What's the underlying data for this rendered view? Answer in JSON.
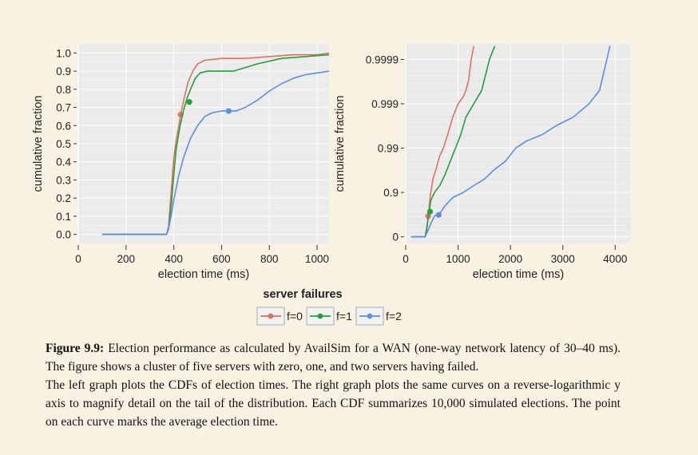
{
  "chart_data": [
    {
      "type": "line",
      "xlabel": "election time (ms)",
      "ylabel": "cumulative fraction",
      "xlim": [
        0,
        1050
      ],
      "ylim": [
        0,
        1
      ],
      "x_ticks": [
        "0",
        "200",
        "400",
        "600",
        "800",
        "1000"
      ],
      "y_ticks": [
        "0.0",
        "0.1",
        "0.2",
        "0.3",
        "0.4",
        "0.5",
        "0.6",
        "0.7",
        "0.8",
        "0.9",
        "1.0"
      ],
      "grid": true,
      "series": [
        {
          "name": "f=0",
          "color": "#e07060",
          "x": [
            100,
            370,
            378,
            390,
            400,
            410,
            420,
            430,
            445,
            460,
            480,
            500,
            530,
            600,
            700,
            800,
            900,
            1000,
            1050
          ],
          "y": [
            0,
            0,
            0.04,
            0.25,
            0.42,
            0.52,
            0.59,
            0.67,
            0.76,
            0.84,
            0.9,
            0.94,
            0.96,
            0.97,
            0.97,
            0.98,
            0.99,
            0.99,
            1.0
          ],
          "mean": {
            "x": 429,
            "y": 0.66
          }
        },
        {
          "name": "f=1",
          "color": "#22a03a",
          "x": [
            100,
            370,
            378,
            390,
            400,
            410,
            425,
            440,
            455,
            470,
            490,
            510,
            540,
            580,
            650,
            750,
            850,
            950,
            1050
          ],
          "y": [
            0,
            0,
            0.03,
            0.17,
            0.33,
            0.47,
            0.59,
            0.68,
            0.75,
            0.8,
            0.86,
            0.89,
            0.9,
            0.9,
            0.9,
            0.94,
            0.97,
            0.98,
            0.99
          ],
          "mean": {
            "x": 465,
            "y": 0.73
          }
        },
        {
          "name": "f=2",
          "color": "#5b8fe0",
          "x": [
            100,
            370,
            378,
            390,
            400,
            420,
            440,
            470,
            500,
            530,
            560,
            600,
            630,
            660,
            700,
            750,
            800,
            850,
            900,
            950,
            1000,
            1050
          ],
          "y": [
            0,
            0,
            0.03,
            0.11,
            0.19,
            0.32,
            0.42,
            0.53,
            0.6,
            0.65,
            0.67,
            0.68,
            0.68,
            0.68,
            0.7,
            0.74,
            0.79,
            0.83,
            0.86,
            0.88,
            0.89,
            0.9
          ],
          "mean": {
            "x": 630,
            "y": 0.68
          }
        }
      ]
    },
    {
      "type": "line",
      "xlabel": "election time (ms)",
      "ylabel": "cumulative fraction",
      "y_scale": "reverse-log",
      "xlim": [
        0,
        4300
      ],
      "ylim": [
        0,
        0.9999
      ],
      "x_ticks": [
        "0",
        "1000",
        "2000",
        "3000",
        "4000"
      ],
      "y_ticks": [
        "0",
        "0.9",
        "0.99",
        "0.999",
        "0.9999"
      ],
      "grid": true,
      "series": [
        {
          "name": "f=0",
          "color": "#e07060",
          "x": [
            100,
            370,
            400,
            430,
            470,
            520,
            580,
            650,
            720,
            800,
            900,
            1000,
            1100,
            1150,
            1200,
            1250,
            1300
          ],
          "y": [
            0,
            0,
            0.35,
            0.66,
            0.88,
            0.95,
            0.97,
            0.985,
            0.99,
            0.995,
            0.998,
            0.999,
            0.9993,
            0.9995,
            0.9997,
            0.9999,
            0.99995
          ],
          "mean": {
            "x": 429,
            "y": 0.66
          }
        },
        {
          "name": "f=1",
          "color": "#22a03a",
          "x": [
            100,
            370,
            400,
            440,
            480,
            550,
            650,
            750,
            850,
            950,
            1050,
            1150,
            1300,
            1450,
            1600,
            1700
          ],
          "y": [
            0,
            0,
            0.3,
            0.7,
            0.85,
            0.9,
            0.93,
            0.96,
            0.98,
            0.99,
            0.995,
            0.998,
            0.999,
            0.9995,
            0.9999,
            0.99995
          ],
          "mean": {
            "x": 465,
            "y": 0.73
          }
        },
        {
          "name": "f=2",
          "color": "#5b8fe0",
          "x": [
            100,
            370,
            420,
            480,
            550,
            650,
            750,
            900,
            1100,
            1300,
            1500,
            1700,
            1900,
            2100,
            2300,
            2600,
            2900,
            3200,
            3500,
            3700,
            3900
          ],
          "y": [
            0,
            0,
            0.25,
            0.5,
            0.66,
            0.7,
            0.8,
            0.87,
            0.9,
            0.93,
            0.95,
            0.97,
            0.98,
            0.99,
            0.993,
            0.995,
            0.997,
            0.998,
            0.999,
            0.9995,
            0.99995
          ],
          "mean": {
            "x": 630,
            "y": 0.68
          }
        }
      ]
    }
  ],
  "legend": {
    "title": "server failures",
    "items": [
      {
        "label": "f=0",
        "color": "#e07060"
      },
      {
        "label": "f=1",
        "color": "#22a03a"
      },
      {
        "label": "f=2",
        "color": "#5b8fe0"
      }
    ]
  },
  "caption": {
    "label": "Figure 9.9:",
    "text1": "Election performance as calculated by AvailSim for a WAN (one-way network latency of 30–40 ms). The figure shows a cluster of five servers with zero, one, and two servers having failed.",
    "text2": "The left graph plots the CDFs of election times. The right graph plots the same curves on a reverse-logarithmic y axis to magnify detail on the tail of the distribution. Each CDF summarizes 10,000 simulated elections. The point on each curve marks the average election time."
  }
}
